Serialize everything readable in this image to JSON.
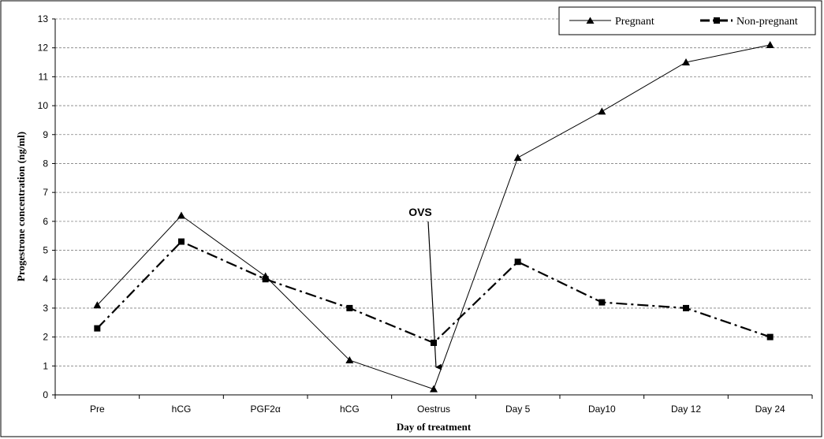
{
  "chart_data": {
    "type": "line",
    "title": "",
    "xlabel": "Day of treatment",
    "ylabel": "Progestrone concentration (ng/ml)",
    "categories": [
      "Pre",
      "hCG",
      "PGF2α",
      "hCG",
      "Oestrus",
      "Day 5",
      "Day10",
      "Day 12",
      "Day 24"
    ],
    "ylim": [
      0,
      13
    ],
    "yticks": [
      "0",
      "1",
      "2",
      "3",
      "4",
      "5",
      "6",
      "7",
      "8",
      "9",
      "10",
      "11",
      "12",
      "13"
    ],
    "grid": true,
    "legend_position": "top-right",
    "series": [
      {
        "name": "Pregnant",
        "marker": "triangle",
        "line": "solid",
        "color": "#000000",
        "values": [
          3.1,
          6.2,
          4.1,
          1.2,
          0.2,
          8.2,
          9.8,
          11.5,
          12.1
        ]
      },
      {
        "name": "Non-pregnant",
        "marker": "square",
        "line": "dash-dot",
        "color": "#000000",
        "values": [
          2.3,
          5.3,
          4.0,
          3.0,
          1.8,
          4.6,
          3.2,
          3.0,
          2.0
        ]
      }
    ],
    "annotations": [
      {
        "text": "OVS",
        "points_to_category": "Oestrus",
        "y_value": 1.0
      }
    ]
  }
}
